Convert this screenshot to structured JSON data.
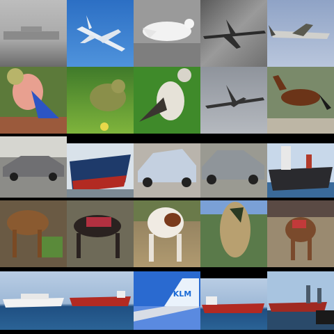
{
  "tail_text": "KLM"
}
